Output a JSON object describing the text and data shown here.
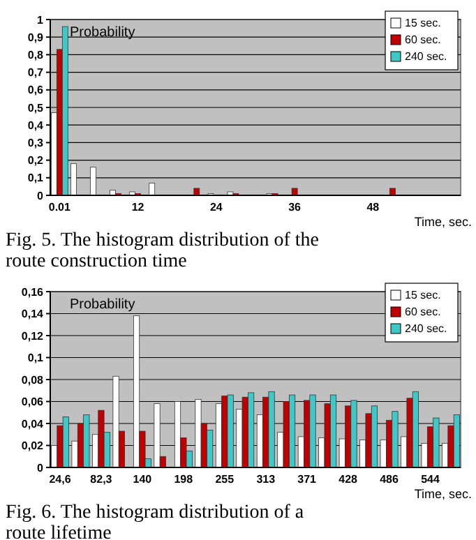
{
  "chart_data": [
    {
      "type": "bar",
      "ylabel": "Probability",
      "xlabel": "Time, sec.",
      "annotations": [
        "Fig. 5. The histogram distribution of the route construction time"
      ],
      "categories": [
        "0.01",
        null,
        null,
        null,
        "12",
        null,
        null,
        null,
        "24",
        null,
        null,
        null,
        "36",
        null,
        null,
        null,
        "48",
        null,
        null,
        null,
        null
      ],
      "series": [
        {
          "name": "15 sec.",
          "color": "#ffffff",
          "values": [
            0.47,
            0.18,
            0.16,
            0.03,
            0.02,
            0.07,
            0,
            0,
            0.01,
            0.02,
            0,
            0.01,
            0,
            0,
            0,
            0,
            0,
            0,
            0,
            0,
            0
          ]
        },
        {
          "name": "60 sec.",
          "color": "#c00000",
          "values": [
            0.83,
            0,
            0,
            0.01,
            0.01,
            0,
            0,
            0.04,
            0,
            0.01,
            0,
            0.01,
            0.04,
            0,
            0,
            0,
            0,
            0.04,
            0,
            0,
            0
          ]
        },
        {
          "name": "240 sec.",
          "color": "#40c8c8",
          "values": [
            0.96,
            0,
            0,
            0,
            0,
            0,
            0,
            0,
            0,
            0,
            0,
            0,
            0,
            0,
            0,
            0,
            0,
            0,
            0,
            0,
            0
          ]
        }
      ],
      "ylim": [
        0,
        1
      ],
      "yticks": [
        {
          "value": 0,
          "label": "0"
        },
        {
          "value": 0.1,
          "label": "0,1"
        },
        {
          "value": 0.2,
          "label": "0,2"
        },
        {
          "value": 0.3,
          "label": "0,3"
        },
        {
          "value": 0.4,
          "label": "0,4"
        },
        {
          "value": 0.5,
          "label": "0,5"
        },
        {
          "value": 0.6,
          "label": "0,6"
        },
        {
          "value": 0.7,
          "label": "0,7"
        },
        {
          "value": 0.8,
          "label": "0,8"
        },
        {
          "value": 0.9,
          "label": "0,9"
        },
        {
          "value": 1,
          "label": "1"
        }
      ],
      "grid": "y",
      "legend": "top right"
    },
    {
      "type": "bar",
      "ylabel": "Probability",
      "xlabel": "Time, sec.",
      "annotations": [
        "Fig. 6. The histogram distribution of a route lifetime"
      ],
      "categories": [
        "24,6",
        null,
        "82,3",
        null,
        "140",
        null,
        "198",
        null,
        "255",
        null,
        "313",
        null,
        "371",
        null,
        "428",
        null,
        "486",
        null,
        "544",
        null
      ],
      "series": [
        {
          "name": "15 sec.",
          "color": "#ffffff",
          "values": [
            0.02,
            0.024,
            0.03,
            0.083,
            0.138,
            0.058,
            0.06,
            0.062,
            0.058,
            0.053,
            0.048,
            0.032,
            0.028,
            0.027,
            0.026,
            0.025,
            0.025,
            0.028,
            0.022,
            0.022
          ]
        },
        {
          "name": "60 sec.",
          "color": "#c00000",
          "values": [
            0.038,
            0.04,
            0.052,
            0.033,
            0.033,
            0.01,
            0.027,
            0.04,
            0.065,
            0.064,
            0.064,
            0.06,
            0.061,
            0.058,
            0.056,
            0.049,
            0.043,
            0.063,
            0.037,
            0.038
          ]
        },
        {
          "name": "240 sec.",
          "color": "#40c8c8",
          "values": [
            0.046,
            0.048,
            0.032,
            0,
            0.008,
            0,
            0.015,
            0.034,
            0.066,
            0.068,
            0.069,
            0.066,
            0.066,
            0.066,
            0.061,
            0.056,
            0.051,
            0.069,
            0.045,
            0.048
          ]
        }
      ],
      "ylim": [
        0,
        0.16
      ],
      "yticks": [
        {
          "value": 0,
          "label": "0"
        },
        {
          "value": 0.02,
          "label": "0,02"
        },
        {
          "value": 0.04,
          "label": "0,04"
        },
        {
          "value": 0.06,
          "label": "0,06"
        },
        {
          "value": 0.08,
          "label": "0,08"
        },
        {
          "value": 0.1,
          "label": "0,1"
        },
        {
          "value": 0.12,
          "label": "0,12"
        },
        {
          "value": 0.14,
          "label": "0,14"
        },
        {
          "value": 0.16,
          "label": "0,16"
        }
      ],
      "grid": "y",
      "legend": "top right"
    }
  ]
}
